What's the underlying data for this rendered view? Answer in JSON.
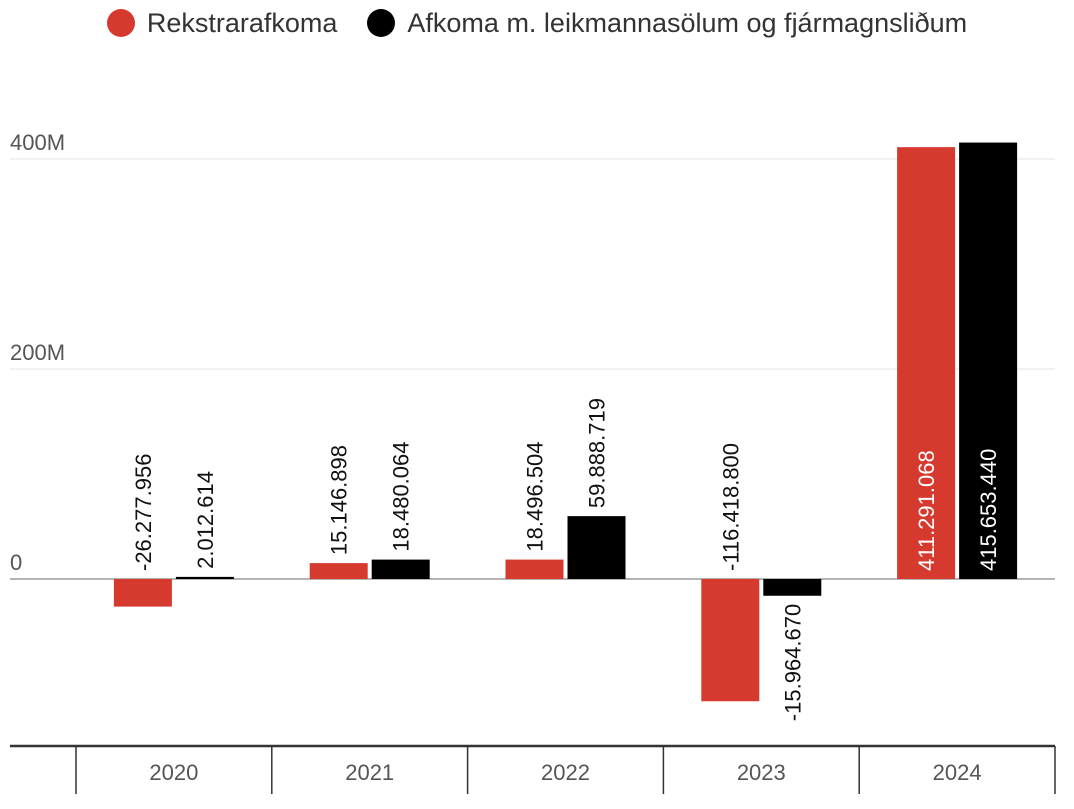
{
  "chart_data": {
    "type": "bar",
    "categories": [
      "2020",
      "2021",
      "2022",
      "2023",
      "2024"
    ],
    "series": [
      {
        "name": "Rekstrarafkoma",
        "color": "#D63A2E",
        "values": [
          -26277956,
          15146898,
          18496504,
          -116418800,
          411291068
        ],
        "labels": [
          "-26.277.956",
          "15.146.898",
          "18.496.504",
          "-116.418.800",
          "411.291.068"
        ]
      },
      {
        "name": "Afkoma m. leikmannasölum og fjármagnsliðum",
        "color": "#000000",
        "values": [
          2012614,
          18480064,
          59888719,
          -15964670,
          415653440
        ],
        "labels": [
          "2.012.614",
          "18.480.064",
          "59.888.719",
          "-15.964.670",
          "415.653.440"
        ]
      }
    ],
    "y_ticks": [
      0,
      200000000,
      400000000
    ],
    "y_tick_labels": [
      "0",
      "200M",
      "400M"
    ],
    "ylim": [
      -160000000,
      420000000
    ],
    "grid": true,
    "legend_position": "top-center"
  }
}
